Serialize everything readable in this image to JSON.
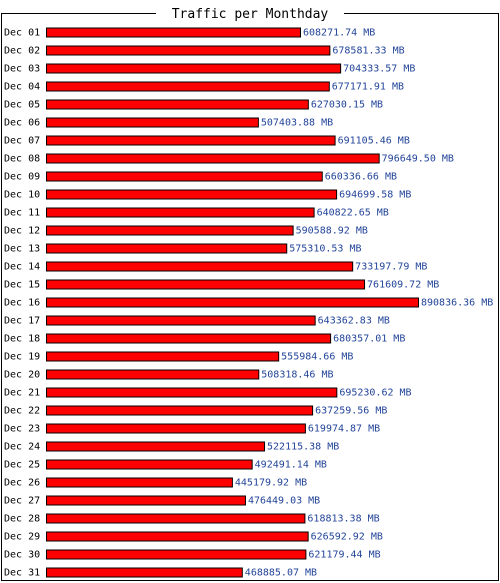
{
  "chart_data": {
    "type": "bar",
    "orientation": "horizontal",
    "title": "Traffic per Monthday",
    "unit": "MB",
    "categories": [
      "Dec 01",
      "Dec 02",
      "Dec 03",
      "Dec 04",
      "Dec 05",
      "Dec 06",
      "Dec 07",
      "Dec 08",
      "Dec 09",
      "Dec 10",
      "Dec 11",
      "Dec 12",
      "Dec 13",
      "Dec 14",
      "Dec 15",
      "Dec 16",
      "Dec 17",
      "Dec 18",
      "Dec 19",
      "Dec 20",
      "Dec 21",
      "Dec 22",
      "Dec 23",
      "Dec 24",
      "Dec 25",
      "Dec 26",
      "Dec 27",
      "Dec 28",
      "Dec 29",
      "Dec 30",
      "Dec 31"
    ],
    "values": [
      608271.74,
      678581.33,
      704333.57,
      677171.91,
      627030.15,
      507403.88,
      691105.46,
      796649.5,
      660336.66,
      694699.58,
      640822.65,
      590588.92,
      575310.53,
      733197.79,
      761609.72,
      890836.36,
      643362.83,
      680357.01,
      555984.66,
      508318.46,
      695230.62,
      637259.56,
      619974.87,
      522115.38,
      492491.14,
      445179.92,
      476449.03,
      618813.38,
      626592.92,
      621179.44,
      468885.07
    ],
    "value_labels": [
      "608271.74 MB",
      "678581.33 MB",
      "704333.57 MB",
      "677171.91 MB",
      "627030.15 MB",
      "507403.88 MB",
      "691105.46 MB",
      "796649.50 MB",
      "660336.66 MB",
      "694699.58 MB",
      "640822.65 MB",
      "590588.92 MB",
      "575310.53 MB",
      "733197.79 MB",
      "761609.72 MB",
      "890836.36 MB",
      "643362.83 MB",
      "680357.01 MB",
      "555984.66 MB",
      "508318.46 MB",
      "695230.62 MB",
      "637259.56 MB",
      "619974.87 MB",
      "522115.38 MB",
      "492491.14 MB",
      "445179.92 MB",
      "476449.03 MB",
      "618813.38 MB",
      "626592.92 MB",
      "621179.44 MB",
      "468885.07 MB"
    ],
    "xlim": [
      0,
      890836.36
    ],
    "grid": false,
    "legend": "none",
    "colors": {
      "bar_fill": "#ff0000",
      "bar_stroke": "#000000",
      "value_text": "#224499",
      "label_text": "#000000"
    }
  }
}
